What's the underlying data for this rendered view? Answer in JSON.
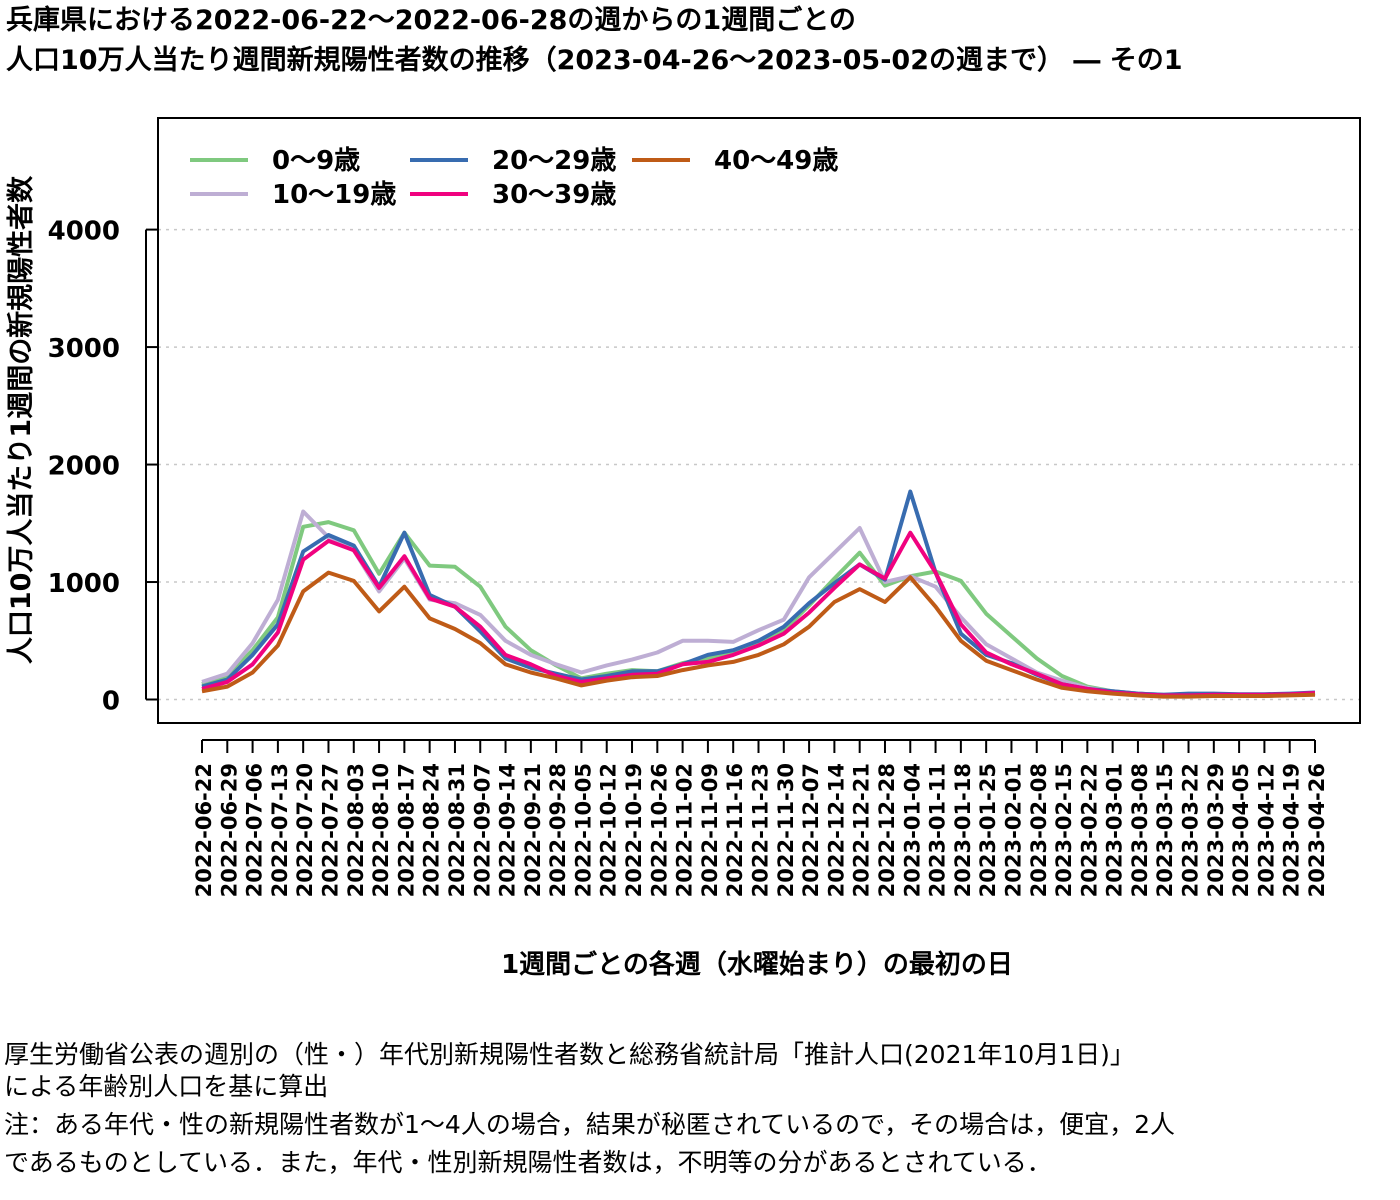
{
  "title_line1": "兵庫県における2022-06-22〜2022-06-28の週からの1週間ごとの",
  "title_line2": "人口10万人当たり週間新規陽性者数の推移（2023-04-26〜2023-05-02の週まで） ― その1",
  "notes": {
    "line1": "厚生労働省公表の週別の（性・）年代別新規陽性者数と総務省統計局「推計人口(2021年10月1日)」",
    "line2": "による年齢別人口を基に算出",
    "line3": "注：ある年代・性の新規陽性者数が1〜4人の場合，結果が秘匿されているので，その場合は，便宜，2人",
    "line4": "であるものとしている．また，年代・性別新規陽性者数は，不明等の分があるとされている．"
  },
  "chart_data": {
    "type": "line",
    "xlabel": "1週間ごとの各週（水曜始まり）の最初の日",
    "ylabel": "人口10万人当たり1週間の新規陽性者数",
    "ylim": [
      -200,
      4950
    ],
    "yticks": [
      0,
      1000,
      2000,
      3000,
      4000
    ],
    "grid": "horizontal dotted",
    "legend_position": "top-left",
    "categories": [
      "2022-06-22",
      "2022-06-29",
      "2022-07-06",
      "2022-07-13",
      "2022-07-20",
      "2022-07-27",
      "2022-08-03",
      "2022-08-10",
      "2022-08-17",
      "2022-08-24",
      "2022-08-31",
      "2022-09-07",
      "2022-09-14",
      "2022-09-21",
      "2022-09-28",
      "2022-10-05",
      "2022-10-12",
      "2022-10-19",
      "2022-10-26",
      "2022-11-02",
      "2022-11-09",
      "2022-11-16",
      "2022-11-23",
      "2022-11-30",
      "2022-12-07",
      "2022-12-14",
      "2022-12-21",
      "2022-12-28",
      "2023-01-04",
      "2023-01-11",
      "2023-01-18",
      "2023-01-25",
      "2023-02-01",
      "2023-02-08",
      "2023-02-15",
      "2023-02-22",
      "2023-03-01",
      "2023-03-08",
      "2023-03-15",
      "2023-03-22",
      "2023-03-29",
      "2023-04-05",
      "2023-04-12",
      "2023-04-19",
      "2023-04-26"
    ],
    "series": [
      {
        "name": "0〜9歳",
        "color": "#7fc97f",
        "values": [
          130,
          200,
          420,
          700,
          1470,
          1510,
          1440,
          1070,
          1420,
          1140,
          1130,
          960,
          620,
          420,
          290,
          180,
          220,
          250,
          240,
          310,
          350,
          410,
          470,
          590,
          800,
          1030,
          1250,
          970,
          1050,
          1090,
          1010,
          730,
          540,
          350,
          200,
          110,
          70,
          50,
          40,
          35,
          35,
          30,
          30,
          40,
          50
        ]
      },
      {
        "name": "10〜19歳",
        "color": "#beaed4",
        "values": [
          150,
          220,
          480,
          850,
          1600,
          1380,
          1270,
          920,
          1200,
          850,
          820,
          720,
          500,
          380,
          300,
          230,
          290,
          340,
          400,
          500,
          500,
          490,
          590,
          680,
          1040,
          1250,
          1460,
          1000,
          1050,
          960,
          700,
          470,
          350,
          230,
          160,
          100,
          70,
          50,
          40,
          35,
          35,
          30,
          30,
          40,
          50
        ]
      },
      {
        "name": "20〜29歳",
        "color": "#386cb0",
        "values": [
          110,
          170,
          380,
          640,
          1260,
          1400,
          1310,
          960,
          1420,
          890,
          790,
          580,
          350,
          270,
          220,
          170,
          200,
          240,
          240,
          300,
          380,
          420,
          500,
          620,
          820,
          990,
          1150,
          1020,
          1770,
          1080,
          560,
          380,
          310,
          210,
          130,
          90,
          70,
          50,
          40,
          50,
          50,
          45,
          45,
          50,
          60
        ]
      },
      {
        "name": "30〜39歳",
        "color": "#f0027f",
        "values": [
          90,
          150,
          300,
          570,
          1190,
          1350,
          1270,
          950,
          1220,
          860,
          790,
          620,
          380,
          300,
          200,
          150,
          180,
          210,
          220,
          300,
          320,
          380,
          460,
          560,
          740,
          950,
          1150,
          1030,
          1420,
          1080,
          640,
          400,
          300,
          220,
          130,
          90,
          60,
          45,
          35,
          35,
          40,
          40,
          40,
          45,
          55
        ]
      },
      {
        "name": "40〜49歳",
        "color": "#bf5b17",
        "values": [
          70,
          110,
          230,
          460,
          920,
          1080,
          1010,
          750,
          960,
          690,
          600,
          480,
          300,
          230,
          180,
          120,
          160,
          190,
          200,
          250,
          290,
          320,
          380,
          470,
          620,
          830,
          940,
          830,
          1040,
          790,
          500,
          330,
          250,
          170,
          100,
          70,
          50,
          35,
          25,
          25,
          30,
          30,
          30,
          35,
          40
        ]
      }
    ]
  }
}
